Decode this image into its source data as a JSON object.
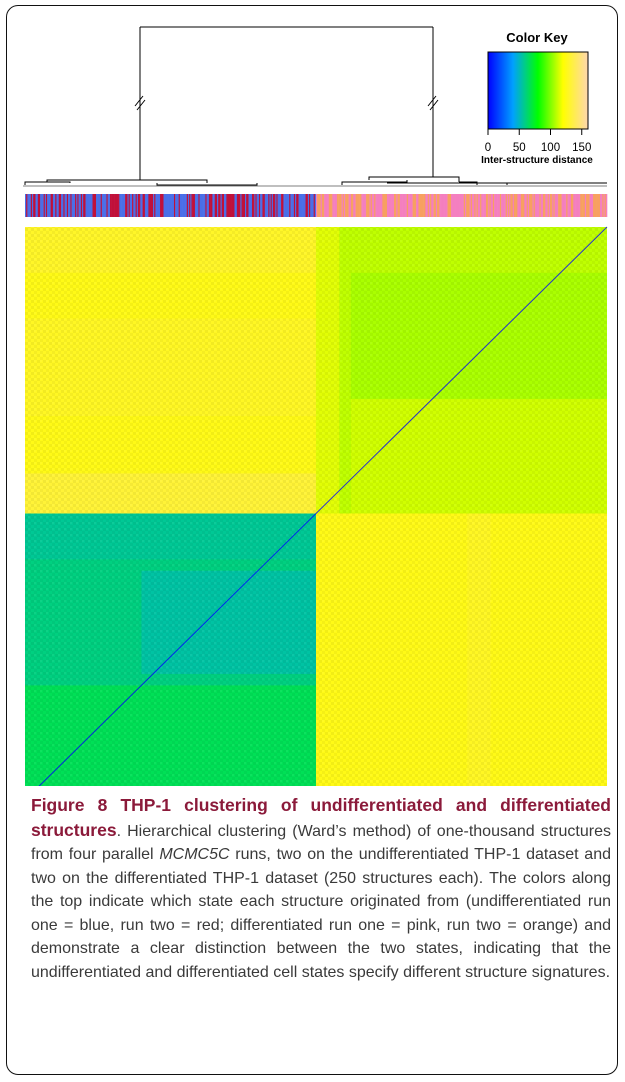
{
  "figure": {
    "caption_title": "Figure 8 THP-1 clustering of undifferentiated and differentiated structures",
    "caption_parts": {
      "p1": ". Hierarchical clustering (Ward’s method) of one-thousand structures from four parallel ",
      "italic": "MCMC5C",
      "p2": " runs, two on the undifferentiated THP-1 dataset and two on the differentiated THP-1 dataset (250 structures each). The colors along the top indicate which state each structure originated from (undifferentiated run one = blue, run two = red; differentiated run one = pink, run two = orange) and demonstrate a clear distinction between the two states, indicating that the undifferentiated and differentiated cell states specify different structure signatures."
    }
  },
  "chart_data": {
    "type": "heatmap",
    "title": "",
    "n_structures": 1000,
    "group_sizes": {
      "undifferentiated": 500,
      "differentiated": 500
    },
    "runs": [
      {
        "state": "undifferentiated",
        "run": "run one",
        "color": "#4a6fe8",
        "count": 250
      },
      {
        "state": "undifferentiated",
        "run": "run two",
        "color": "#c0103a",
        "count": 250
      },
      {
        "state": "differentiated",
        "run": "run one",
        "color": "#f47fbf",
        "count": 250
      },
      {
        "state": "differentiated",
        "run": "run two",
        "color": "#f7a060",
        "count": 250
      }
    ],
    "blocks": {
      "within_undifferentiated": 60,
      "within_differentiated": 110,
      "between_states": 125,
      "diagonal": 0
    },
    "dendrogram": "two main clusters (undifferentiated, differentiated) joined at the root; root branches truncated",
    "color_key": {
      "title": "Color Key",
      "label": "Inter-structure distance",
      "range": [
        0,
        160
      ],
      "ticks": [
        0,
        50,
        100,
        150
      ],
      "gradient": [
        "#0000ff",
        "#00a0ff",
        "#00ff00",
        "#ffff00",
        "#ffd7b0"
      ]
    }
  }
}
